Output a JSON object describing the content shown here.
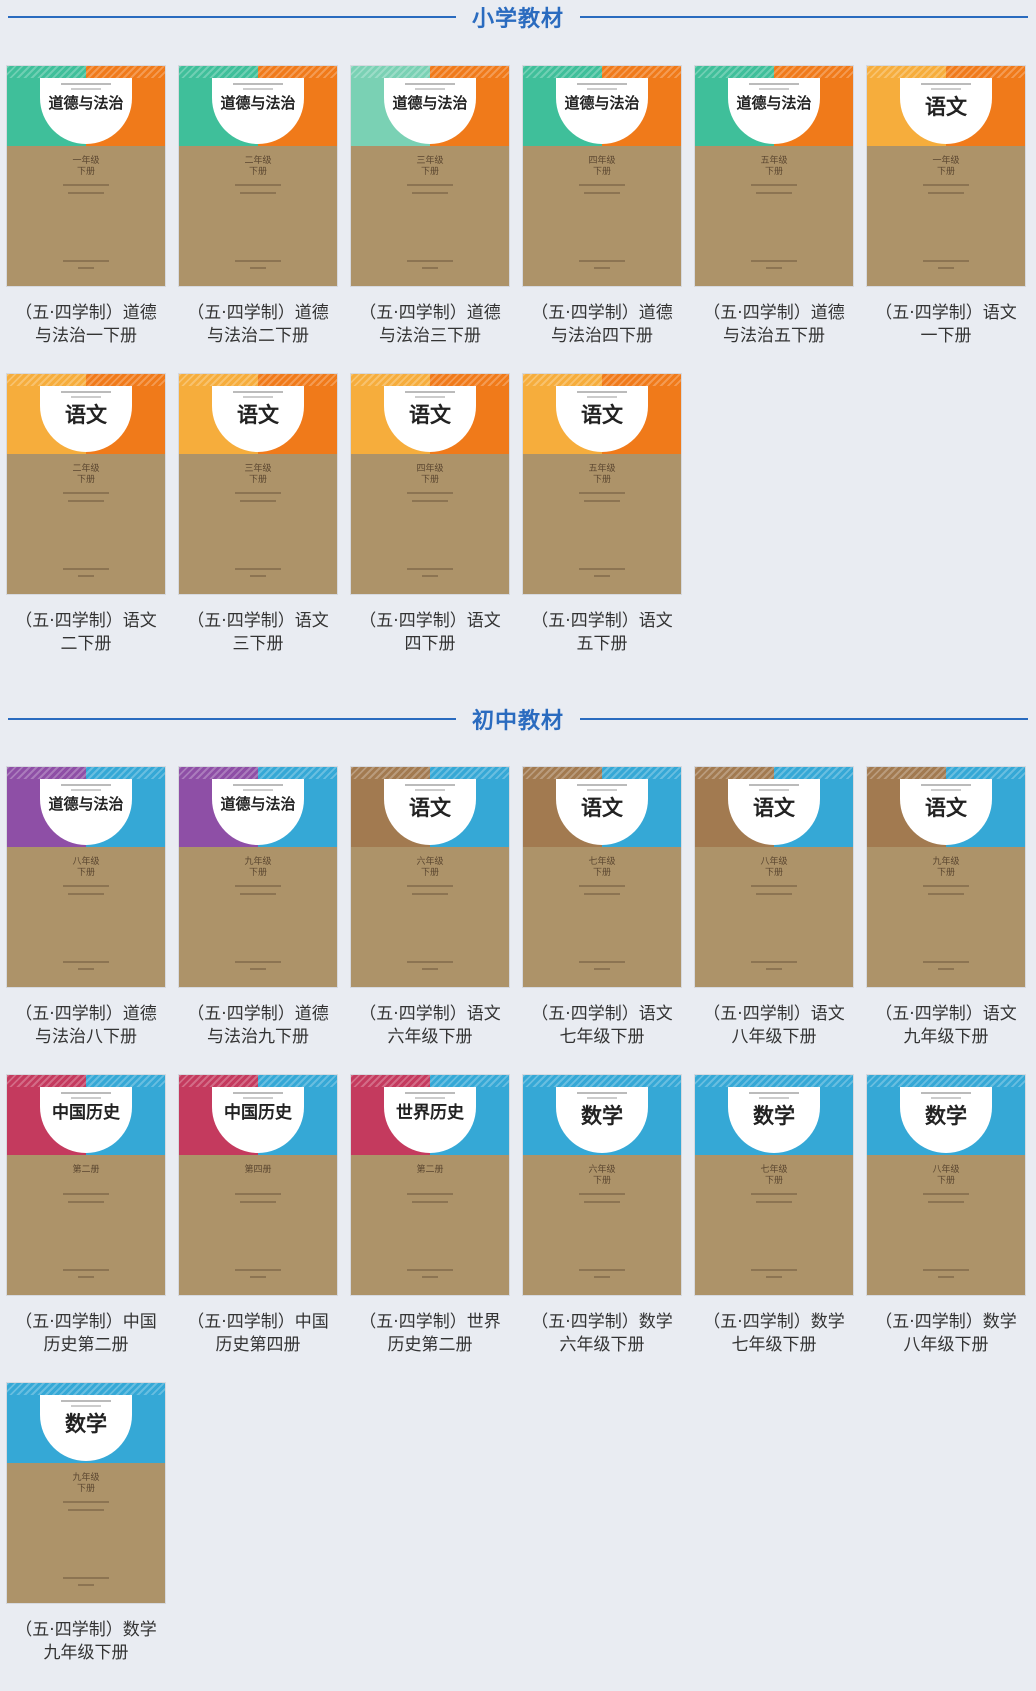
{
  "sections": [
    {
      "title": "小学教材",
      "books": [
        {
          "cover_title": "道德与法治",
          "grade": "一年级",
          "volume": "下册",
          "caption": "（五·四学制）道德与法治一下册",
          "left_color": "#3fbf9a",
          "right_color": "#f07a1a"
        },
        {
          "cover_title": "道德与法治",
          "grade": "二年级",
          "volume": "下册",
          "caption": "（五·四学制）道德与法治二下册",
          "left_color": "#3fbf9a",
          "right_color": "#f07a1a"
        },
        {
          "cover_title": "道德与法治",
          "grade": "三年级",
          "volume": "下册",
          "caption": "（五·四学制）道德与法治三下册",
          "left_color": "#7ad1b4",
          "right_color": "#f07a1a"
        },
        {
          "cover_title": "道德与法治",
          "grade": "四年级",
          "volume": "下册",
          "caption": "（五·四学制）道德与法治四下册",
          "left_color": "#3fbf9a",
          "right_color": "#f07a1a"
        },
        {
          "cover_title": "道德与法治",
          "grade": "五年级",
          "volume": "下册",
          "caption": "（五·四学制）道德与法治五下册",
          "left_color": "#3fbf9a",
          "right_color": "#f07a1a"
        },
        {
          "cover_title": "语文",
          "grade": "一年级",
          "volume": "下册",
          "caption": "（五·四学制）语文一下册",
          "left_color": "#f6ad3c",
          "right_color": "#f07a1a"
        },
        {
          "cover_title": "语文",
          "grade": "二年级",
          "volume": "下册",
          "caption": "（五·四学制）语文二下册",
          "left_color": "#f6ad3c",
          "right_color": "#f07a1a"
        },
        {
          "cover_title": "语文",
          "grade": "三年级",
          "volume": "下册",
          "caption": "（五·四学制）语文三下册",
          "left_color": "#f6ad3c",
          "right_color": "#f07a1a"
        },
        {
          "cover_title": "语文",
          "grade": "四年级",
          "volume": "下册",
          "caption": "（五·四学制）语文四下册",
          "left_color": "#f6ad3c",
          "right_color": "#f07a1a"
        },
        {
          "cover_title": "语文",
          "grade": "五年级",
          "volume": "下册",
          "caption": "（五·四学制）语文五下册",
          "left_color": "#f6ad3c",
          "right_color": "#f07a1a"
        }
      ]
    },
    {
      "title": "初中教材",
      "books": [
        {
          "cover_title": "道德与法治",
          "grade": "八年级",
          "volume": "下册",
          "caption": "（五·四学制）道德与法治八下册",
          "left_color": "#8e4fa6",
          "right_color": "#35a8d6"
        },
        {
          "cover_title": "道德与法治",
          "grade": "九年级",
          "volume": "下册",
          "caption": "（五·四学制）道德与法治九下册",
          "left_color": "#8e4fa6",
          "right_color": "#35a8d6"
        },
        {
          "cover_title": "语文",
          "grade": "六年级",
          "volume": "下册",
          "caption": "（五·四学制）语文六年级下册",
          "left_color": "#a27a50",
          "right_color": "#35a8d6"
        },
        {
          "cover_title": "语文",
          "grade": "七年级",
          "volume": "下册",
          "caption": "（五·四学制）语文七年级下册",
          "left_color": "#a27a50",
          "right_color": "#35a8d6"
        },
        {
          "cover_title": "语文",
          "grade": "八年级",
          "volume": "下册",
          "caption": "（五·四学制）语文八年级下册",
          "left_color": "#a27a50",
          "right_color": "#35a8d6"
        },
        {
          "cover_title": "语文",
          "grade": "九年级",
          "volume": "下册",
          "caption": "（五·四学制）语文九年级下册",
          "left_color": "#a27a50",
          "right_color": "#35a8d6"
        },
        {
          "cover_title": "中国历史",
          "grade": "第二册",
          "volume": "",
          "caption": "（五·四学制）中国历史第二册",
          "left_color": "#c43a5e",
          "right_color": "#35a8d6"
        },
        {
          "cover_title": "中国历史",
          "grade": "第四册",
          "volume": "",
          "caption": "（五·四学制）中国历史第四册",
          "left_color": "#c43a5e",
          "right_color": "#35a8d6"
        },
        {
          "cover_title": "世界历史",
          "grade": "第二册",
          "volume": "",
          "caption": "（五·四学制）世界历史第二册",
          "left_color": "#c43a5e",
          "right_color": "#35a8d6"
        },
        {
          "cover_title": "数学",
          "grade": "六年级",
          "volume": "下册",
          "caption": "（五·四学制）数学六年级下册",
          "left_color": "#35a8d6",
          "right_color": "#35a8d6"
        },
        {
          "cover_title": "数学",
          "grade": "七年级",
          "volume": "下册",
          "caption": "（五·四学制）数学七年级下册",
          "left_color": "#35a8d6",
          "right_color": "#35a8d6"
        },
        {
          "cover_title": "数学",
          "grade": "八年级",
          "volume": "下册",
          "caption": "（五·四学制）数学八年级下册",
          "left_color": "#35a8d6",
          "right_color": "#35a8d6"
        },
        {
          "cover_title": "数学",
          "grade": "九年级",
          "volume": "下册",
          "caption": "（五·四学制）数学九年级下册",
          "left_color": "#35a8d6",
          "right_color": "#35a8d6"
        }
      ]
    }
  ]
}
